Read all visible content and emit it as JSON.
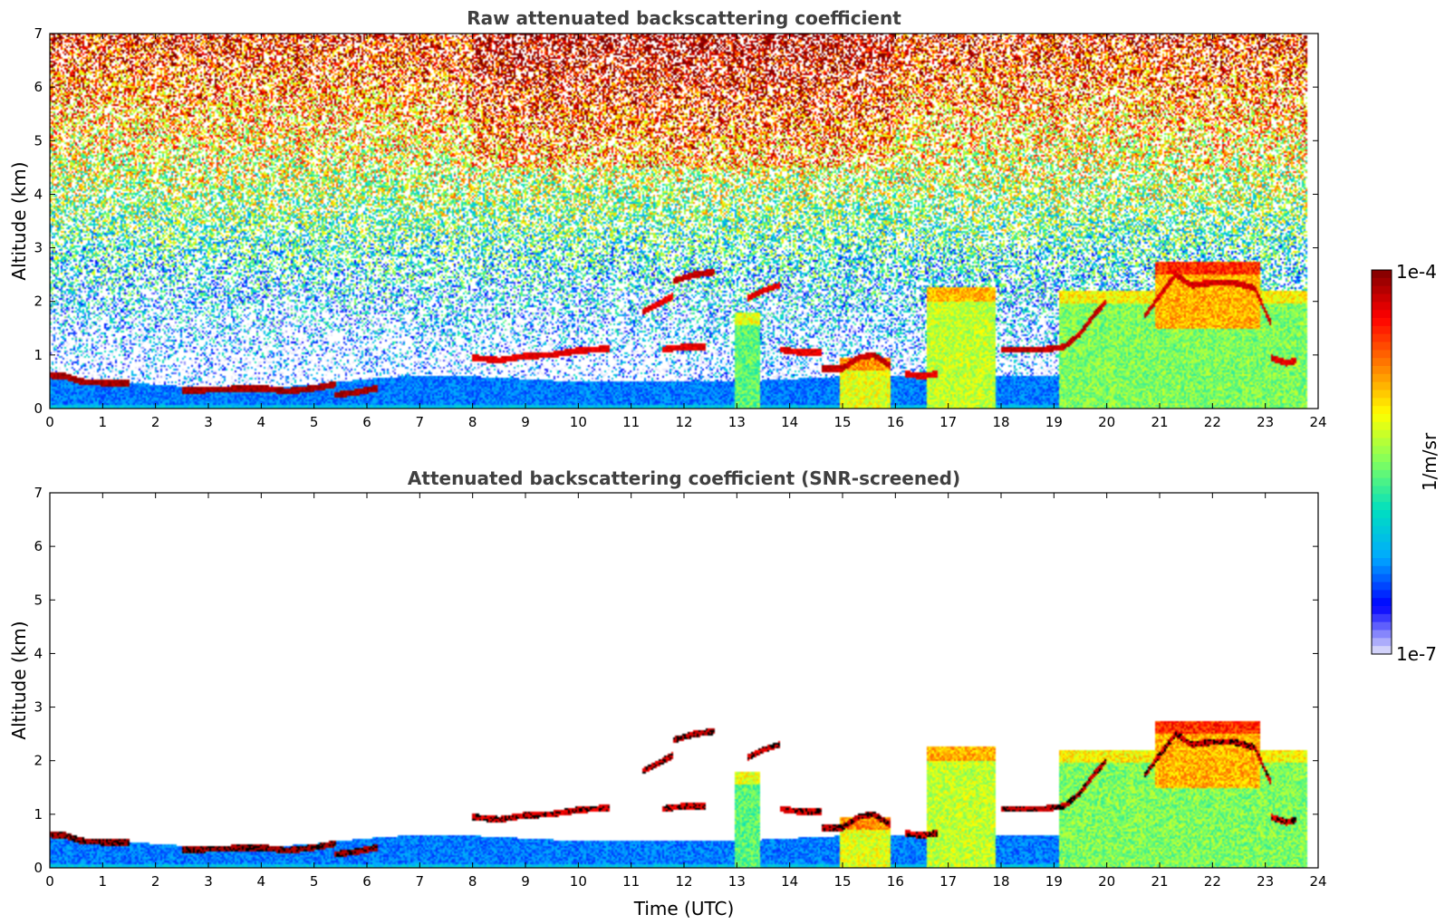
{
  "chart_data": [
    {
      "type": "heatmap",
      "title": "Raw attenuated backscattering coefficient",
      "xlabel": "",
      "ylabel": "Altitude (km)",
      "xlim": [
        0,
        24
      ],
      "ylim": [
        0,
        7
      ],
      "x_ticks": [
        "0",
        "1",
        "2",
        "3",
        "4",
        "5",
        "6",
        "7",
        "8",
        "9",
        "10",
        "11",
        "12",
        "13",
        "14",
        "15",
        "16",
        "17",
        "18",
        "19",
        "20",
        "21",
        "22",
        "23",
        "24"
      ],
      "y_ticks": [
        "0",
        "1",
        "2",
        "3",
        "4",
        "5",
        "6",
        "7"
      ],
      "data_end_time": 23.8,
      "screened": false,
      "features": {
        "boundary_layer": [
          [
            0,
            0.6
          ],
          [
            1,
            0.5
          ],
          [
            2,
            0.45
          ],
          [
            3,
            0.38
          ],
          [
            4,
            0.38
          ],
          [
            5,
            0.45
          ],
          [
            6,
            0.55
          ],
          [
            7,
            0.62
          ],
          [
            8,
            0.6
          ],
          [
            9,
            0.55
          ],
          [
            10,
            0.5
          ],
          [
            11,
            0.5
          ],
          [
            12,
            0.5
          ],
          [
            13,
            0.5
          ],
          [
            14,
            0.55
          ],
          [
            15,
            0.6
          ],
          [
            16,
            0.6
          ],
          [
            17,
            0.6
          ],
          [
            18,
            0.6
          ],
          [
            19,
            0.6
          ],
          [
            20,
            0.6
          ],
          [
            21,
            0.6
          ],
          [
            22,
            0.6
          ],
          [
            23,
            0.6
          ],
          [
            23.8,
            0.6
          ]
        ],
        "layer_lines": [
          {
            "pts": [
              [
                0,
                0.62
              ],
              [
                0.3,
                0.6
              ],
              [
                0.6,
                0.5
              ],
              [
                1,
                0.48
              ],
              [
                1.5,
                0.48
              ]
            ],
            "value": -4.1
          },
          {
            "pts": [
              [
                2.5,
                0.33
              ],
              [
                3,
                0.35
              ],
              [
                4,
                0.38
              ],
              [
                4.5,
                0.32
              ],
              [
                5,
                0.38
              ],
              [
                5.4,
                0.45
              ]
            ],
            "value": -4.1
          },
          {
            "pts": [
              [
                5.4,
                0.25
              ],
              [
                5.8,
                0.3
              ],
              [
                6.2,
                0.38
              ]
            ],
            "value": -4.1
          },
          {
            "pts": [
              [
                8,
                0.95
              ],
              [
                8.5,
                0.9
              ],
              [
                9,
                0.98
              ],
              [
                9.5,
                1.0
              ],
              [
                10,
                1.08
              ],
              [
                10.6,
                1.12
              ]
            ],
            "value": -4.3
          },
          {
            "pts": [
              [
                11.8,
                2.38
              ],
              [
                12.2,
                2.5
              ],
              [
                12.6,
                2.55
              ]
            ],
            "value": -4.2
          },
          {
            "pts": [
              [
                11.2,
                1.8
              ],
              [
                11.5,
                1.95
              ],
              [
                11.8,
                2.1
              ]
            ],
            "value": -4.3
          },
          {
            "pts": [
              [
                13.2,
                2.05
              ],
              [
                13.5,
                2.2
              ],
              [
                13.8,
                2.3
              ]
            ],
            "value": -4.3
          },
          {
            "pts": [
              [
                11.6,
                1.1
              ],
              [
                12,
                1.15
              ],
              [
                12.4,
                1.15
              ]
            ],
            "value": -4.3
          },
          {
            "pts": [
              [
                13.8,
                1.1
              ],
              [
                14.2,
                1.05
              ],
              [
                14.6,
                1.05
              ]
            ],
            "value": -4.3
          },
          {
            "pts": [
              [
                14.6,
                0.75
              ],
              [
                15,
                0.75
              ],
              [
                15.3,
                0.95
              ],
              [
                15.6,
                1.0
              ],
              [
                15.9,
                0.8
              ]
            ],
            "value": -4.2
          },
          {
            "pts": [
              [
                16.2,
                0.65
              ],
              [
                16.5,
                0.6
              ],
              [
                16.8,
                0.65
              ]
            ],
            "value": -4.3
          },
          {
            "pts": [
              [
                18,
                1.1
              ],
              [
                18.4,
                1.1
              ],
              [
                18.8,
                1.1
              ],
              [
                19.2,
                1.15
              ],
              [
                19.5,
                1.4
              ],
              [
                19.8,
                1.8
              ],
              [
                20,
                2.0
              ]
            ],
            "value": -4.2
          },
          {
            "pts": [
              [
                20.7,
                1.7
              ],
              [
                21,
                2.1
              ],
              [
                21.3,
                2.5
              ],
              [
                21.6,
                2.3
              ],
              [
                22,
                2.35
              ],
              [
                22.4,
                2.35
              ],
              [
                22.8,
                2.25
              ],
              [
                23.1,
                1.6
              ]
            ],
            "value": -4.25
          },
          {
            "pts": [
              [
                23.1,
                0.95
              ],
              [
                23.4,
                0.85
              ],
              [
                23.6,
                0.9
              ]
            ],
            "value": -4.3
          }
        ],
        "aerosol_regions": [
          {
            "t0": 12.95,
            "t1": 13.45,
            "z0": 0,
            "z1": 1.8,
            "value": -5.6
          },
          {
            "t0": 14.95,
            "t1": 15.9,
            "z0": 0,
            "z1": 0.95,
            "value": -5.2
          },
          {
            "t0": 16.6,
            "t1": 17.9,
            "z0": 0,
            "z1": 2.25,
            "value": -5.3
          },
          {
            "t0": 19.1,
            "t1": 23.8,
            "z0": 0,
            "z1": 2.2,
            "value": -5.5
          },
          {
            "t0": 20.9,
            "t1": 22.9,
            "z0": 1.5,
            "z1": 2.75,
            "value": -4.9
          }
        ]
      }
    },
    {
      "type": "heatmap",
      "title": "Attenuated backscattering coefficient (SNR-screened)",
      "xlabel": "Time (UTC)",
      "ylabel": "Altitude (km)",
      "xlim": [
        0,
        24
      ],
      "ylim": [
        0,
        7
      ],
      "x_ticks": [
        "0",
        "1",
        "2",
        "3",
        "4",
        "5",
        "6",
        "7",
        "8",
        "9",
        "10",
        "11",
        "12",
        "13",
        "14",
        "15",
        "16",
        "17",
        "18",
        "19",
        "20",
        "21",
        "22",
        "23",
        "24"
      ],
      "y_ticks": [
        "0",
        "1",
        "2",
        "3",
        "4",
        "5",
        "6",
        "7"
      ],
      "data_end_time": 23.8,
      "screened": true
    }
  ],
  "colorbar": {
    "label": "1/m/sr",
    "max_label": "1e-4",
    "min_label": "1e-7",
    "log_min": -7,
    "log_max": -4,
    "colormap": [
      "#e6e6fa",
      "#0000ff",
      "#00aaff",
      "#00e0c0",
      "#80ff60",
      "#ffff00",
      "#ff8000",
      "#ff0000",
      "#800000"
    ]
  }
}
